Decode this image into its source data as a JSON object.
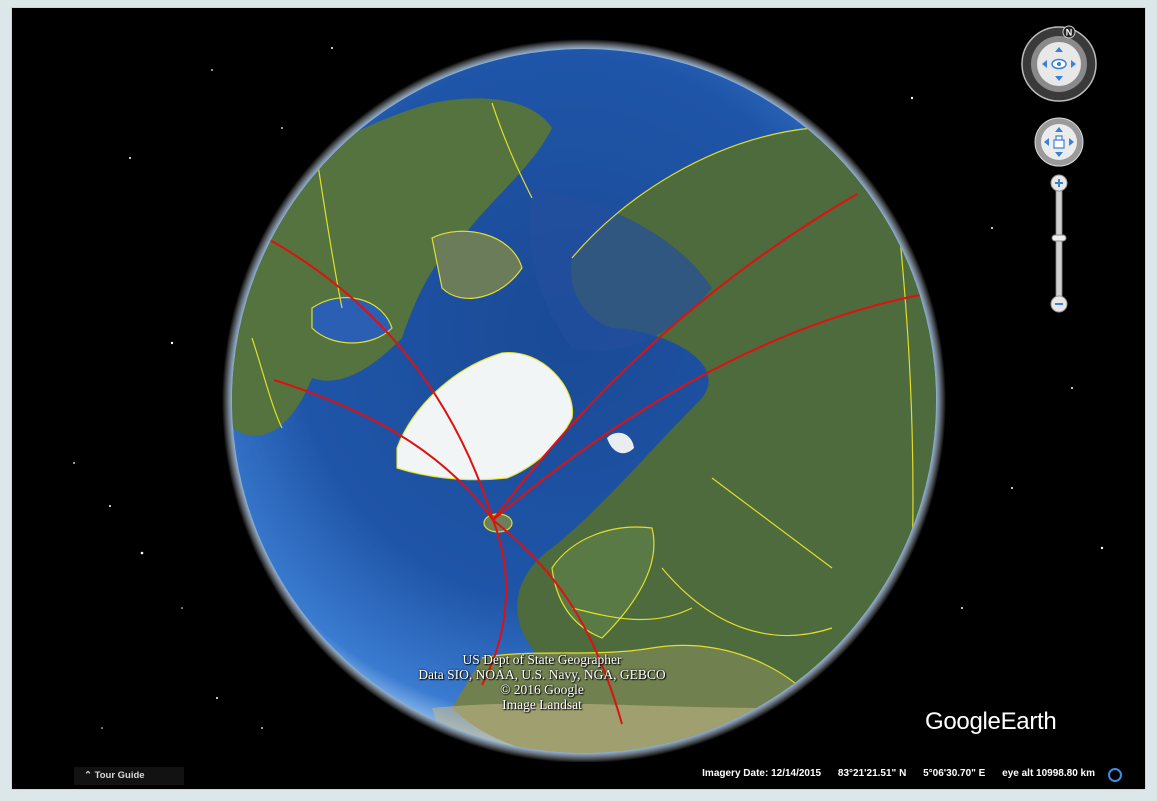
{
  "credits": {
    "line1": "US Dept of State Geographer",
    "line2": "Data SIO, NOAA, U.S. Navy, NGA, GEBCO",
    "line3": "© 2016 Google",
    "line4": "Image Landsat"
  },
  "logo": {
    "google": "Google",
    "earth": "Earth"
  },
  "navigation": {
    "compass_north": "N"
  },
  "tour_guide": {
    "label": "Tour Guide",
    "icon": "chevron-up-icon"
  },
  "status_bar": {
    "imagery_date": "Imagery Date: 12/14/2015",
    "latitude": "83°21'21.51\" N",
    "longitude": "5°06'30.70\" E",
    "eye_alt": "eye alt 10998.80 km"
  },
  "colors": {
    "route": "#e01010",
    "borders": "#f2ea2a",
    "ocean": "#1e4f9c",
    "land": "#4d6b3c",
    "ice": "#f2f5f6",
    "page_background": "#dbe7e9"
  }
}
